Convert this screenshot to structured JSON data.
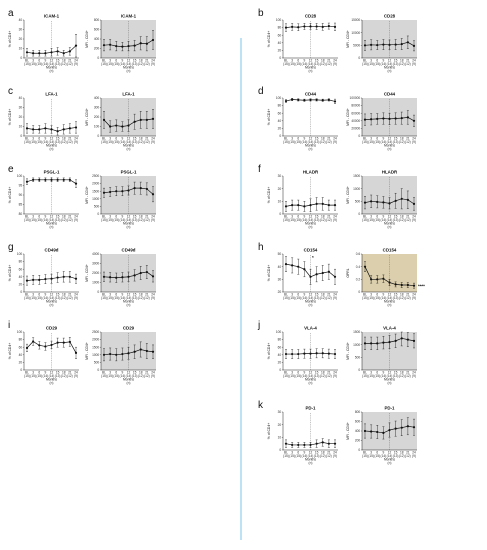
{
  "colors": {
    "gray_bg": "#d6d6d6",
    "tan_bg": "#dccfae",
    "divider": "#5ab4e6",
    "sig": "#e02020",
    "line": "#111111"
  },
  "x_ticks": [
    "BL\n(15)",
    "3\n(15)",
    "6\n(15)",
    "9\n(14)",
    "12\n(14)",
    "15\n(13)",
    "18\n(12)",
    "21\n(12)",
    "24\n(9)"
  ],
  "xlabel": "Months",
  "panel_letters": [
    "a",
    "b",
    "c",
    "d",
    "e",
    "f",
    "g",
    "h",
    "i",
    "j",
    "k"
  ],
  "chart_data": [
    {
      "type": "line",
      "panel": "a",
      "title": "ICAM-1",
      "ylabel": "% of CD4+",
      "ylim": [
        0,
        40
      ],
      "yticks": [
        0,
        10,
        20,
        30,
        40
      ],
      "bg": "white",
      "values": [
        6,
        5,
        5,
        5,
        6,
        7,
        5,
        7,
        13
      ],
      "errors": [
        4,
        3,
        3,
        3,
        4,
        4,
        3,
        4,
        12
      ]
    },
    {
      "type": "line",
      "panel": "a",
      "title": "ICAM-1",
      "ylabel": "MFI - CD4+",
      "ylim": [
        0,
        800
      ],
      "yticks": [
        0,
        200,
        400,
        600,
        800
      ],
      "bg": "gray",
      "values": [
        270,
        280,
        250,
        240,
        250,
        260,
        310,
        300,
        380
      ],
      "errors": [
        120,
        110,
        100,
        90,
        100,
        110,
        140,
        150,
        200
      ]
    },
    {
      "type": "line",
      "panel": "b",
      "title": "CD28",
      "ylabel": "% of CD4+",
      "ylim": [
        0,
        100
      ],
      "yticks": [
        0,
        20,
        40,
        60,
        80,
        100
      ],
      "bg": "white",
      "values": [
        80,
        82,
        81,
        83,
        83,
        83,
        82,
        84,
        82
      ],
      "errors": [
        10,
        9,
        9,
        8,
        8,
        8,
        9,
        8,
        10
      ]
    },
    {
      "type": "line",
      "panel": "b",
      "title": "CD28",
      "ylabel": "MFI - CD4+",
      "ylim": [
        0,
        15000
      ],
      "yticks": [
        0,
        5000,
        10000,
        15000
      ],
      "bg": "gray",
      "values": [
        5000,
        5200,
        5100,
        5300,
        5200,
        5300,
        5500,
        6200,
        4800
      ],
      "errors": [
        2000,
        2000,
        1800,
        2000,
        1900,
        2000,
        2200,
        2500,
        2000
      ]
    },
    {
      "type": "line",
      "panel": "c",
      "title": "LFA-1",
      "ylabel": "% of CD4+",
      "ylim": [
        0,
        40
      ],
      "yticks": [
        0,
        10,
        20,
        30,
        40
      ],
      "bg": "white",
      "values": [
        8,
        7,
        7,
        8,
        7,
        5,
        7,
        8,
        9
      ],
      "errors": [
        5,
        4,
        4,
        5,
        4,
        4,
        5,
        5,
        6
      ]
    },
    {
      "type": "line",
      "panel": "c",
      "title": "LFA-1",
      "ylabel": "MFI - CD4+",
      "ylim": [
        0,
        400
      ],
      "yticks": [
        0,
        100,
        200,
        300,
        400
      ],
      "bg": "gray",
      "values": [
        170,
        100,
        110,
        100,
        110,
        150,
        170,
        170,
        180
      ],
      "errors": [
        90,
        60,
        60,
        50,
        60,
        80,
        90,
        90,
        100
      ]
    },
    {
      "type": "line",
      "panel": "d",
      "title": "CD44",
      "ylabel": "% of CD4+",
      "ylim": [
        0,
        100
      ],
      "yticks": [
        0,
        20,
        40,
        60,
        80,
        100
      ],
      "bg": "white",
      "values": [
        92,
        96,
        95,
        94,
        95,
        95,
        94,
        95,
        91
      ],
      "errors": [
        4,
        3,
        3,
        3,
        3,
        3,
        3,
        3,
        6
      ]
    },
    {
      "type": "line",
      "panel": "d",
      "title": "CD44",
      "ylabel": "MFI - CD4+",
      "ylim": [
        0,
        100000
      ],
      "yticks": [
        0,
        20000,
        40000,
        60000,
        80000,
        100000
      ],
      "bg": "gray",
      "values": [
        43000,
        44000,
        45000,
        46000,
        45000,
        46000,
        47000,
        49000,
        40000
      ],
      "errors": [
        15000,
        15000,
        14000,
        15000,
        15000,
        15000,
        16000,
        18000,
        15000
      ]
    },
    {
      "type": "line",
      "panel": "e",
      "title": "PSGL-1",
      "ylabel": "% of CD4+",
      "ylim": [
        80,
        100
      ],
      "yticks": [
        80,
        85,
        90,
        95,
        100
      ],
      "bg": "white",
      "values": [
        97,
        98,
        98,
        98,
        98,
        98,
        98,
        98,
        96
      ],
      "errors": [
        1.5,
        1,
        1,
        1,
        1,
        1,
        1,
        1,
        2
      ]
    },
    {
      "type": "line",
      "panel": "e",
      "title": "PSGL-1",
      "ylabel": "MFI - CD4+",
      "ylim": [
        0,
        2500
      ],
      "yticks": [
        0,
        500,
        1000,
        1500,
        2000,
        2500
      ],
      "bg": "gray",
      "values": [
        1400,
        1450,
        1500,
        1500,
        1550,
        1700,
        1700,
        1650,
        1300
      ],
      "errors": [
        300,
        300,
        300,
        300,
        300,
        400,
        400,
        400,
        500
      ]
    },
    {
      "type": "line",
      "panel": "f",
      "title": "HLADR",
      "ylabel": "% of CD4+",
      "ylim": [
        0,
        30
      ],
      "yticks": [
        0,
        10,
        20,
        30
      ],
      "bg": "white",
      "values": [
        6,
        7,
        7,
        6,
        7,
        8,
        8,
        7,
        7
      ],
      "errors": [
        4,
        4,
        4,
        4,
        5,
        5,
        5,
        4,
        4
      ]
    },
    {
      "type": "line",
      "panel": "f",
      "title": "HLADR",
      "ylabel": "MFI - CD4+",
      "ylim": [
        0,
        1500
      ],
      "yticks": [
        0,
        500,
        1000,
        1500
      ],
      "bg": "gray",
      "values": [
        450,
        500,
        480,
        460,
        420,
        520,
        600,
        560,
        400
      ],
      "errors": [
        250,
        250,
        240,
        230,
        220,
        300,
        400,
        350,
        250
      ]
    },
    {
      "type": "line",
      "panel": "g",
      "title": "CD49d",
      "ylabel": "% of CD4+",
      "ylim": [
        0,
        100
      ],
      "yticks": [
        0,
        20,
        40,
        60,
        80,
        100
      ],
      "bg": "white",
      "values": [
        30,
        32,
        32,
        34,
        35,
        38,
        40,
        40,
        35
      ],
      "errors": [
        12,
        12,
        12,
        12,
        12,
        13,
        14,
        14,
        12
      ]
    },
    {
      "type": "line",
      "panel": "g",
      "title": "CD49d",
      "ylabel": "MFI - CD4+",
      "ylim": [
        0,
        4000
      ],
      "yticks": [
        0,
        1000,
        2000,
        3000,
        4000
      ],
      "bg": "gray",
      "values": [
        1600,
        1550,
        1500,
        1550,
        1600,
        1750,
        2000,
        2100,
        1650
      ],
      "errors": [
        500,
        500,
        500,
        500,
        500,
        600,
        700,
        700,
        600
      ]
    },
    {
      "type": "line",
      "panel": "h",
      "title": "CD154",
      "ylabel": "% of CD4+",
      "ylim": [
        20,
        50
      ],
      "yticks": [
        20,
        30,
        40,
        50
      ],
      "bg": "white",
      "values": [
        42,
        41,
        40,
        38,
        32,
        34,
        35,
        36,
        32
      ],
      "errors": [
        6,
        6,
        6,
        6,
        6,
        6,
        6,
        6,
        6
      ],
      "annotation": "*"
    },
    {
      "type": "line",
      "panel": "h",
      "title": "CD154",
      "ylabel": "OPRL",
      "ylim": [
        0,
        0.6
      ],
      "yticks": [
        0,
        0.2,
        0.4,
        0.6
      ],
      "bg": "tan",
      "values": [
        0.4,
        0.2,
        0.2,
        0.21,
        0.15,
        0.12,
        0.11,
        0.11,
        0.1
      ],
      "errors": [
        0.08,
        0.06,
        0.06,
        0.06,
        0.05,
        0.04,
        0.04,
        0.04,
        0.04
      ],
      "annotation": "****"
    },
    {
      "type": "line",
      "panel": "i",
      "title": "CD29",
      "ylabel": "% of CD4+",
      "ylim": [
        0,
        100
      ],
      "yticks": [
        0,
        20,
        40,
        60,
        80,
        100
      ],
      "bg": "white",
      "values": [
        58,
        75,
        65,
        62,
        66,
        72,
        72,
        74,
        45
      ],
      "errors": [
        10,
        10,
        10,
        10,
        10,
        12,
        12,
        12,
        15
      ]
    },
    {
      "type": "line",
      "panel": "i",
      "title": "CD29",
      "ylabel": "MFI - CD4+",
      "ylim": [
        0,
        2500
      ],
      "yticks": [
        0,
        500,
        1000,
        1500,
        2000,
        2500
      ],
      "bg": "gray",
      "values": [
        1000,
        1050,
        1000,
        1050,
        1100,
        1200,
        1350,
        1250,
        1200
      ],
      "errors": [
        400,
        400,
        400,
        400,
        400,
        450,
        500,
        500,
        450
      ]
    },
    {
      "type": "line",
      "panel": "j",
      "title": "VLA-4",
      "ylabel": "% of CD4+",
      "ylim": [
        0,
        100
      ],
      "yticks": [
        0,
        20,
        40,
        60,
        80,
        100
      ],
      "bg": "white",
      "values": [
        42,
        42,
        42,
        43,
        43,
        44,
        44,
        43,
        42
      ],
      "errors": [
        12,
        12,
        12,
        12,
        12,
        12,
        12,
        12,
        12
      ]
    },
    {
      "type": "line",
      "panel": "j",
      "title": "VLA-4",
      "ylabel": "MFI - CD4+",
      "ylim": [
        0,
        1500
      ],
      "yticks": [
        0,
        500,
        1000,
        1500
      ],
      "bg": "gray",
      "values": [
        1050,
        1050,
        1050,
        1080,
        1100,
        1150,
        1250,
        1200,
        1150
      ],
      "errors": [
        250,
        250,
        250,
        250,
        260,
        270,
        300,
        280,
        280
      ]
    },
    {
      "type": "line",
      "panel": "k",
      "title": "PD-1",
      "ylabel": "% of CD4+",
      "ylim": [
        0,
        30
      ],
      "yticks": [
        0,
        10,
        20,
        30
      ],
      "bg": "white",
      "values": [
        5,
        4,
        4,
        4,
        4,
        5,
        6,
        5,
        5
      ],
      "errors": [
        3,
        2,
        2,
        2,
        2,
        3,
        3,
        3,
        3
      ]
    },
    {
      "type": "line",
      "panel": "k",
      "title": "PD-1",
      "ylabel": "MFI - CD4+",
      "ylim": [
        0,
        800
      ],
      "yticks": [
        0,
        200,
        400,
        600,
        800
      ],
      "bg": "gray",
      "values": [
        400,
        390,
        380,
        360,
        420,
        450,
        470,
        500,
        480
      ],
      "errors": [
        150,
        140,
        140,
        130,
        150,
        160,
        170,
        180,
        170
      ]
    }
  ]
}
